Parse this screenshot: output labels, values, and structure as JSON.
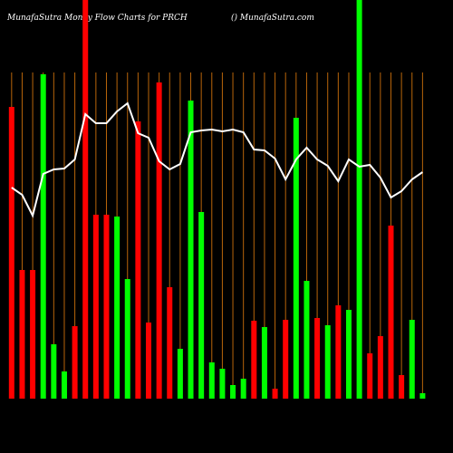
{
  "chart_data": {
    "type": "bar",
    "title": "MunafaSutra  Money  Flow  Charts for PRCH",
    "subtitle": "() MunafaSutra.com",
    "categories": [
      null,
      null,
      null,
      null,
      null,
      null,
      null,
      null,
      null,
      null,
      null,
      null,
      null,
      null,
      null,
      null,
      null,
      null,
      null,
      null,
      null,
      null,
      null,
      null,
      null,
      null,
      null,
      null,
      null,
      null,
      null,
      null,
      null,
      null,
      null,
      null,
      null,
      null,
      null,
      null
    ],
    "series": [
      {
        "color": "bar",
        "values": [
          322,
          142,
          142,
          358,
          60,
          30,
          80,
          440,
          203,
          203,
          201,
          132,
          306,
          84,
          349,
          123,
          55,
          329,
          206,
          40,
          33,
          15,
          22,
          86,
          79,
          11,
          87,
          310,
          130,
          89,
          81,
          103,
          98,
          440,
          50,
          69,
          191,
          26,
          87,
          6
        ]
      },
      {
        "color": "#ffffff",
        "values": [
          233,
          225,
          202,
          248,
          253,
          254,
          264,
          314,
          304,
          304,
          317,
          326,
          293,
          288,
          262,
          253,
          259,
          294,
          296,
          297,
          295,
          297,
          294,
          275,
          274,
          265,
          242,
          264,
          277,
          264,
          257,
          240,
          264,
          256,
          258,
          244,
          222,
          229,
          242,
          250
        ]
      }
    ],
    "bar_colors": [
      "#ff0000",
      "#ff0000",
      "#ff0000",
      "#00ff00",
      "#00ff00",
      "#00ff00",
      "#ff0000",
      "#ff0000",
      "#ff0000",
      "#ff0000",
      "#00ff00",
      "#00ff00",
      "#ff0000",
      "#ff0000",
      "#ff0000",
      "#ff0000",
      "#00ff00",
      "#00ff00",
      "#00ff00",
      "#00ff00",
      "#00ff00",
      "#00ff00",
      "#00ff00",
      "#ff0000",
      "#00ff00",
      "#ff0000",
      "#ff0000",
      "#00ff00",
      "#00ff00",
      "#ff0000",
      "#00ff00",
      "#ff0000",
      "#00ff00",
      "#00ff00",
      "#ff0000",
      "#ff0000",
      "#ff0000",
      "#ff0000",
      "#00ff00",
      "#00ff00"
    ],
    "grid_color": "#b8650a",
    "ylim": [
      0,
      440
    ]
  }
}
